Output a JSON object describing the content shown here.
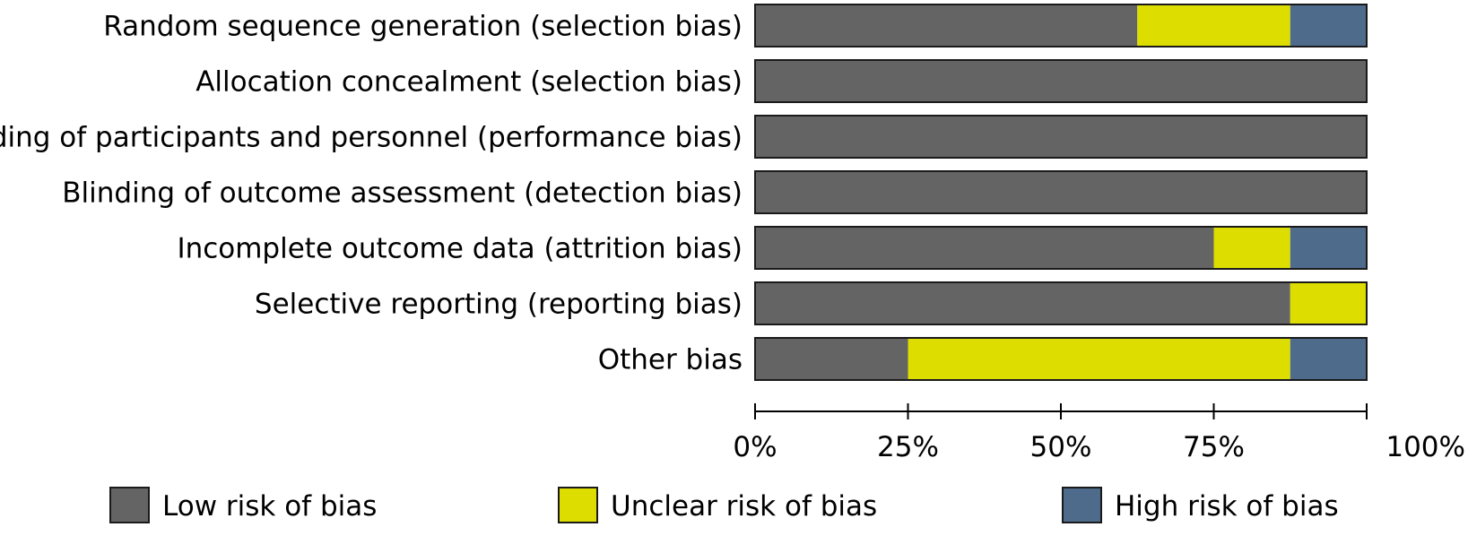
{
  "chart_data": {
    "type": "bar",
    "orientation": "horizontal",
    "stacked": true,
    "categories": [
      "Random sequence generation (selection bias)",
      "Allocation concealment (selection bias)",
      "Blinding of participants and personnel (performance bias)",
      "Blinding of outcome assessment (detection bias)",
      "Incomplete outcome data (attrition bias)",
      "Selective reporting (reporting bias)",
      "Other bias"
    ],
    "series": [
      {
        "name": "Low risk of bias",
        "color": "#646464",
        "values": [
          62.5,
          100,
          100,
          100,
          75,
          87.5,
          25
        ]
      },
      {
        "name": "Unclear risk of bias",
        "color": "#dddd00",
        "values": [
          25,
          0,
          0,
          0,
          12.5,
          12.5,
          62.5
        ]
      },
      {
        "name": "High risk of bias",
        "color": "#4e6b8c",
        "values": [
          12.5,
          0,
          0,
          0,
          12.5,
          0,
          12.5
        ]
      }
    ],
    "x_ticks": [
      "0%",
      "25%",
      "50%",
      "75%",
      "100%"
    ],
    "xlim": [
      0,
      100
    ],
    "grid": false,
    "legend_position": "bottom"
  }
}
